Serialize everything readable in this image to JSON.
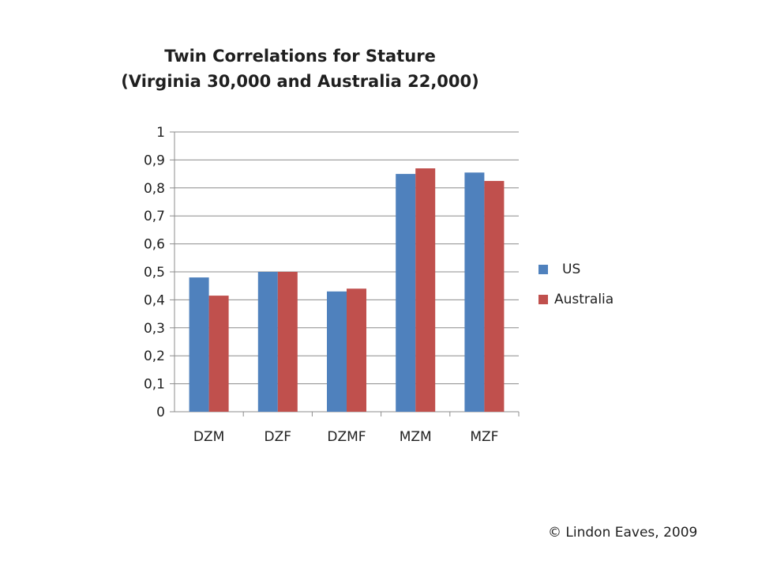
{
  "chart_data": {
    "type": "bar",
    "title_line1": "Twin Correlations for Stature",
    "title_line2": "(Virginia 30,000 and Australia 22,000)",
    "categories": [
      "DZM",
      "DZF",
      "DZMF",
      "MZM",
      "MZF"
    ],
    "series": [
      {
        "name": "US",
        "color": "#4f81bd",
        "values": [
          0.48,
          0.5,
          0.43,
          0.85,
          0.855
        ]
      },
      {
        "name": "Australia",
        "color": "#c0504d",
        "values": [
          0.415,
          0.5,
          0.44,
          0.87,
          0.825
        ]
      }
    ],
    "ylim": [
      0,
      1
    ],
    "yticks": [
      "0",
      "0,1",
      "0,2",
      "0,3",
      "0,4",
      "0,5",
      "0,6",
      "0,7",
      "0,8",
      "0,9",
      "1"
    ],
    "grid": true,
    "legend_position": "right"
  },
  "footer": {
    "copyright": "© Lindon Eaves, 2009"
  }
}
